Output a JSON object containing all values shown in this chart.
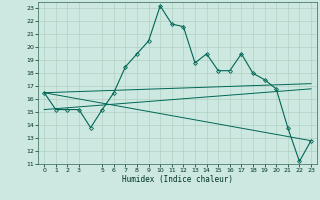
{
  "title": "",
  "xlabel": "Humidex (Indice chaleur)",
  "background_color": "#cce8e0",
  "grid_color": "#aaccbb",
  "line_color": "#006655",
  "ylim": [
    11,
    23.5
  ],
  "xlim": [
    -0.5,
    23.5
  ],
  "yticks": [
    11,
    12,
    13,
    14,
    15,
    16,
    17,
    18,
    19,
    20,
    21,
    22,
    23
  ],
  "xticks": [
    0,
    1,
    2,
    3,
    5,
    6,
    7,
    8,
    9,
    10,
    11,
    12,
    13,
    14,
    15,
    16,
    17,
    18,
    19,
    20,
    21,
    22,
    23
  ],
  "series": [
    {
      "x": [
        0,
        1,
        2,
        3,
        4,
        5,
        6,
        7,
        8,
        9,
        10,
        11,
        12,
        13,
        14,
        15,
        16,
        17,
        18,
        19,
        20,
        21,
        22,
        23
      ],
      "y": [
        16.5,
        15.2,
        15.2,
        15.2,
        13.8,
        15.2,
        16.5,
        18.5,
        19.5,
        20.5,
        23.2,
        21.8,
        21.6,
        18.8,
        19.5,
        18.2,
        18.2,
        19.5,
        18.0,
        17.5,
        16.8,
        13.8,
        11.2,
        12.8
      ],
      "marker": "D",
      "markersize": 2.0,
      "linewidth": 0.8
    },
    {
      "x": [
        0,
        23
      ],
      "y": [
        16.5,
        12.8
      ],
      "marker": null,
      "linewidth": 0.7
    },
    {
      "x": [
        0,
        23
      ],
      "y": [
        16.5,
        17.2
      ],
      "marker": null,
      "linewidth": 0.7
    },
    {
      "x": [
        0,
        23
      ],
      "y": [
        15.2,
        16.8
      ],
      "marker": null,
      "linewidth": 0.7
    }
  ]
}
